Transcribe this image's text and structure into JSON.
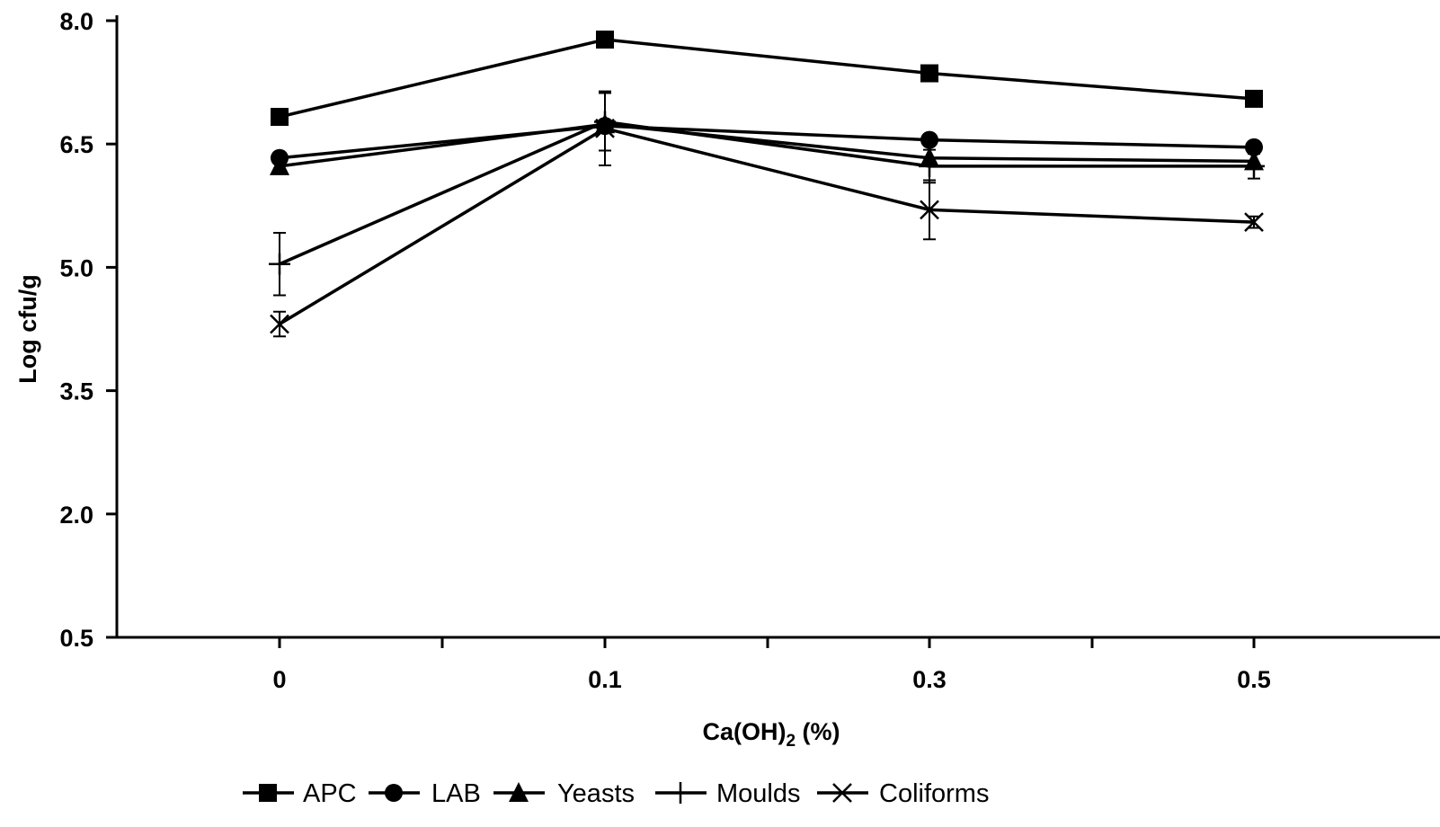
{
  "chart_data": {
    "type": "line",
    "title": "",
    "xlabel": "Ca(OH)",
    "xlabel_subscript": "2",
    "xlabel_suffix": " (%)",
    "ylabel": "Log cfu/g",
    "categories": [
      "0",
      "0.1",
      "0.3",
      "0.5"
    ],
    "ylim": [
      0.5,
      8.0
    ],
    "yticks": [
      "8.0",
      "6.5",
      "5.0",
      "3.5",
      "2.0",
      "0.5"
    ],
    "ytick_values": [
      8.0,
      6.5,
      5.0,
      3.5,
      2.0,
      0.5
    ],
    "grid": false,
    "legend_position": "bottom",
    "series": [
      {
        "name": "APC",
        "marker": "square",
        "values": [
          6.83,
          7.77,
          7.36,
          7.05
        ]
      },
      {
        "name": "LAB",
        "marker": "circle",
        "values": [
          6.33,
          6.72,
          6.55,
          6.46
        ]
      },
      {
        "name": "Yeasts",
        "marker": "triangle",
        "values": [
          6.23,
          6.74,
          6.33,
          6.29
        ]
      },
      {
        "name": "Moulds",
        "marker": "plus",
        "values": [
          5.04,
          6.77,
          6.23,
          6.23
        ],
        "error": [
          0.38,
          0.35,
          0.2,
          0.15
        ]
      },
      {
        "name": "Coliforms",
        "marker": "x",
        "values": [
          4.31,
          6.69,
          5.7,
          5.55
        ],
        "error": [
          0.15,
          0.45,
          0.36,
          0.07
        ]
      }
    ]
  }
}
